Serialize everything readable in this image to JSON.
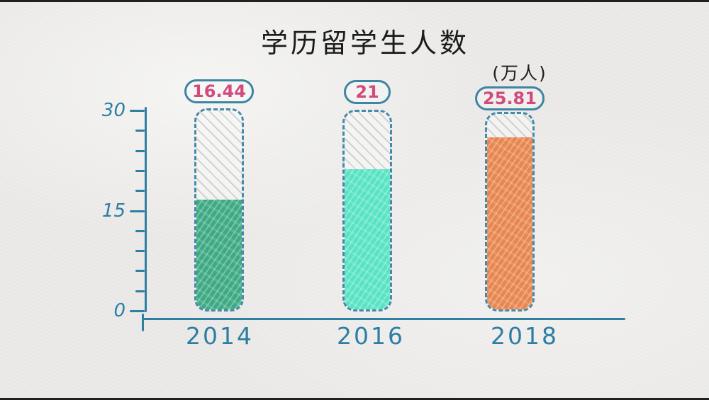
{
  "page": {
    "background_color": "#ebeae8",
    "film_strip_color": "#202020"
  },
  "chart_data": {
    "type": "bar",
    "title": "学历留学生人数",
    "unit_label": "(万人)",
    "categories": [
      "2014",
      "2016",
      "2018"
    ],
    "values": [
      16.44,
      21,
      25.81
    ],
    "value_labels": [
      "16.44",
      "21",
      "25.81"
    ],
    "series_name": "学历留学生人数",
    "xlabel": "",
    "ylabel": "",
    "ylim": [
      0,
      30
    ],
    "yticks": [
      0,
      15,
      30
    ],
    "ytick_labels": [
      "0",
      "15",
      "30"
    ],
    "minor_tick_step": 3,
    "grid": false,
    "legend": "none",
    "bar_fill_colors": [
      "#3daa83",
      "#58e3c3",
      "#e8864f"
    ],
    "colors": {
      "title_text": "#1c1c1c",
      "axis": "#2f7fa0",
      "label_text": "#2d7ea4",
      "value_text": "#d14b7e",
      "badge_border": "#3e85a4",
      "bar_outline": "#4689a9"
    }
  }
}
